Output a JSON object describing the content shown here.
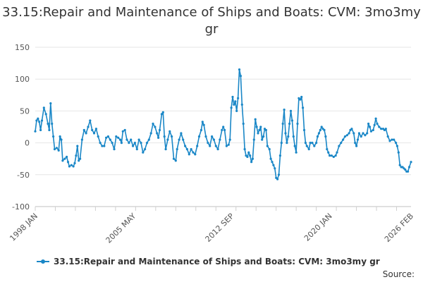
{
  "chart_data": {
    "type": "line",
    "title": "33.15:Repair and Maintenance of Ships and Boats: CVM: 3mo3my gr",
    "xlabel": "",
    "ylabel": "",
    "ylim": [
      -100,
      150
    ],
    "yticks": [
      150,
      100,
      50,
      0,
      -50,
      -100
    ],
    "xticks": [
      {
        "label": "1998 JAN",
        "t": 1998.0
      },
      {
        "label": "2005 MAY",
        "t": 2005.33
      },
      {
        "label": "2012 SEP",
        "t": 2012.67
      },
      {
        "label": "2020 JAN",
        "t": 2020.0
      },
      {
        "label": "2026 FEB",
        "t": 2026.08
      }
    ],
    "xlim": [
      1998.0,
      2026.08
    ],
    "grid": "horizontal",
    "legend_position": "bottom",
    "color": "#1a87c7",
    "series": [
      {
        "name": "33.15:Repair and Maintenance of Ships and Boats: CVM: 3mo3my gr",
        "points": [
          [
            1998.0,
            18
          ],
          [
            1998.1,
            35
          ],
          [
            1998.2,
            38
          ],
          [
            1998.3,
            33
          ],
          [
            1998.4,
            20
          ],
          [
            1998.5,
            35
          ],
          [
            1998.65,
            55
          ],
          [
            1998.8,
            45
          ],
          [
            1998.95,
            30
          ],
          [
            1999.05,
            20
          ],
          [
            1999.15,
            62
          ],
          [
            1999.25,
            30
          ],
          [
            1999.35,
            10
          ],
          [
            1999.45,
            -10
          ],
          [
            1999.6,
            -8
          ],
          [
            1999.75,
            -12
          ],
          [
            1999.85,
            10
          ],
          [
            1999.95,
            5
          ],
          [
            2000.05,
            -28
          ],
          [
            2000.2,
            -25
          ],
          [
            2000.35,
            -22
          ],
          [
            2000.45,
            -30
          ],
          [
            2000.55,
            -37
          ],
          [
            2000.7,
            -35
          ],
          [
            2000.85,
            -37
          ],
          [
            2000.95,
            -32
          ],
          [
            2001.05,
            -20
          ],
          [
            2001.15,
            -5
          ],
          [
            2001.25,
            -28
          ],
          [
            2001.35,
            -25
          ],
          [
            2001.5,
            5
          ],
          [
            2001.65,
            20
          ],
          [
            2001.8,
            15
          ],
          [
            2001.95,
            25
          ],
          [
            2002.1,
            35
          ],
          [
            2002.25,
            20
          ],
          [
            2002.4,
            15
          ],
          [
            2002.55,
            22
          ],
          [
            2002.7,
            10
          ],
          [
            2002.85,
            0
          ],
          [
            2003.0,
            -5
          ],
          [
            2003.15,
            -5
          ],
          [
            2003.3,
            8
          ],
          [
            2003.45,
            10
          ],
          [
            2003.6,
            5
          ],
          [
            2003.75,
            0
          ],
          [
            2003.9,
            -10
          ],
          [
            2004.05,
            10
          ],
          [
            2004.2,
            8
          ],
          [
            2004.35,
            5
          ],
          [
            2004.45,
            0
          ],
          [
            2004.55,
            18
          ],
          [
            2004.7,
            20
          ],
          [
            2004.85,
            5
          ],
          [
            2005.0,
            0
          ],
          [
            2005.15,
            5
          ],
          [
            2005.3,
            -5
          ],
          [
            2005.45,
            0
          ],
          [
            2005.6,
            -10
          ],
          [
            2005.75,
            5
          ],
          [
            2005.9,
            0
          ],
          [
            2006.05,
            -15
          ],
          [
            2006.2,
            -10
          ],
          [
            2006.35,
            0
          ],
          [
            2006.5,
            5
          ],
          [
            2006.65,
            15
          ],
          [
            2006.8,
            30
          ],
          [
            2006.95,
            25
          ],
          [
            2007.1,
            15
          ],
          [
            2007.2,
            8
          ],
          [
            2007.3,
            20
          ],
          [
            2007.45,
            45
          ],
          [
            2007.55,
            48
          ],
          [
            2007.65,
            10
          ],
          [
            2007.75,
            -10
          ],
          [
            2007.9,
            5
          ],
          [
            2008.05,
            18
          ],
          [
            2008.2,
            10
          ],
          [
            2008.35,
            -25
          ],
          [
            2008.5,
            -28
          ],
          [
            2008.6,
            -10
          ],
          [
            2008.75,
            5
          ],
          [
            2008.9,
            15
          ],
          [
            2009.05,
            5
          ],
          [
            2009.2,
            -5
          ],
          [
            2009.35,
            -10
          ],
          [
            2009.5,
            -18
          ],
          [
            2009.65,
            -10
          ],
          [
            2009.8,
            -15
          ],
          [
            2009.95,
            -18
          ],
          [
            2010.1,
            -5
          ],
          [
            2010.25,
            10
          ],
          [
            2010.4,
            20
          ],
          [
            2010.5,
            33
          ],
          [
            2010.6,
            28
          ],
          [
            2010.75,
            10
          ],
          [
            2010.9,
            0
          ],
          [
            2011.05,
            -5
          ],
          [
            2011.2,
            10
          ],
          [
            2011.35,
            5
          ],
          [
            2011.5,
            -5
          ],
          [
            2011.65,
            -10
          ],
          [
            2011.8,
            5
          ],
          [
            2011.95,
            20
          ],
          [
            2012.05,
            25
          ],
          [
            2012.15,
            20
          ],
          [
            2012.3,
            -5
          ],
          [
            2012.45,
            -3
          ],
          [
            2012.55,
            5
          ],
          [
            2012.65,
            55
          ],
          [
            2012.75,
            72
          ],
          [
            2012.85,
            60
          ],
          [
            2012.95,
            65
          ],
          [
            2013.05,
            50
          ],
          [
            2013.15,
            70
          ],
          [
            2013.25,
            115
          ],
          [
            2013.35,
            105
          ],
          [
            2013.45,
            60
          ],
          [
            2013.55,
            30
          ],
          [
            2013.65,
            -10
          ],
          [
            2013.75,
            -20
          ],
          [
            2013.85,
            -22
          ],
          [
            2013.95,
            -15
          ],
          [
            2014.05,
            -20
          ],
          [
            2014.15,
            -30
          ],
          [
            2014.25,
            -25
          ],
          [
            2014.35,
            5
          ],
          [
            2014.45,
            37
          ],
          [
            2014.55,
            25
          ],
          [
            2014.65,
            15
          ],
          [
            2014.75,
            20
          ],
          [
            2014.85,
            25
          ],
          [
            2014.95,
            5
          ],
          [
            2015.05,
            10
          ],
          [
            2015.15,
            22
          ],
          [
            2015.25,
            20
          ],
          [
            2015.35,
            -5
          ],
          [
            2015.5,
            -10
          ],
          [
            2015.6,
            -25
          ],
          [
            2015.7,
            -30
          ],
          [
            2015.8,
            -35
          ],
          [
            2015.9,
            -40
          ],
          [
            2016.0,
            -55
          ],
          [
            2016.1,
            -57
          ],
          [
            2016.2,
            -50
          ],
          [
            2016.3,
            -20
          ],
          [
            2016.4,
            0
          ],
          [
            2016.5,
            30
          ],
          [
            2016.6,
            52
          ],
          [
            2016.7,
            15
          ],
          [
            2016.8,
            0
          ],
          [
            2016.9,
            10
          ],
          [
            2017.0,
            30
          ],
          [
            2017.1,
            50
          ],
          [
            2017.2,
            35
          ],
          [
            2017.3,
            10
          ],
          [
            2017.4,
            -5
          ],
          [
            2017.5,
            -15
          ],
          [
            2017.6,
            30
          ],
          [
            2017.7,
            70
          ],
          [
            2017.8,
            68
          ],
          [
            2017.9,
            72
          ],
          [
            2018.0,
            55
          ],
          [
            2018.1,
            20
          ],
          [
            2018.2,
            0
          ],
          [
            2018.3,
            -5
          ],
          [
            2018.45,
            -10
          ],
          [
            2018.55,
            0
          ],
          [
            2018.7,
            0
          ],
          [
            2018.85,
            -5
          ],
          [
            2019.0,
            0
          ],
          [
            2019.1,
            10
          ],
          [
            2019.2,
            15
          ],
          [
            2019.3,
            20
          ],
          [
            2019.4,
            25
          ],
          [
            2019.5,
            22
          ],
          [
            2019.6,
            20
          ],
          [
            2019.7,
            10
          ],
          [
            2019.8,
            -10
          ],
          [
            2019.9,
            -15
          ],
          [
            2020.0,
            -20
          ],
          [
            2020.15,
            -20
          ],
          [
            2020.3,
            -22
          ],
          [
            2020.45,
            -20
          ],
          [
            2020.55,
            -15
          ],
          [
            2020.7,
            -5
          ],
          [
            2020.85,
            0
          ],
          [
            2021.0,
            5
          ],
          [
            2021.15,
            10
          ],
          [
            2021.3,
            12
          ],
          [
            2021.45,
            15
          ],
          [
            2021.55,
            20
          ],
          [
            2021.65,
            22
          ],
          [
            2021.8,
            15
          ],
          [
            2021.9,
            0
          ],
          [
            2022.0,
            -5
          ],
          [
            2022.1,
            5
          ],
          [
            2022.2,
            15
          ],
          [
            2022.35,
            10
          ],
          [
            2022.5,
            15
          ],
          [
            2022.65,
            12
          ],
          [
            2022.8,
            15
          ],
          [
            2022.9,
            30
          ],
          [
            2023.0,
            25
          ],
          [
            2023.1,
            18
          ],
          [
            2023.25,
            20
          ],
          [
            2023.35,
            28
          ],
          [
            2023.45,
            38
          ],
          [
            2023.55,
            30
          ],
          [
            2023.7,
            25
          ],
          [
            2023.85,
            22
          ],
          [
            2024.0,
            22
          ],
          [
            2024.1,
            20
          ],
          [
            2024.2,
            22
          ],
          [
            2024.35,
            10
          ],
          [
            2024.5,
            3
          ],
          [
            2024.65,
            5
          ],
          [
            2024.8,
            5
          ],
          [
            2024.95,
            0
          ],
          [
            2025.05,
            -5
          ],
          [
            2025.15,
            -15
          ],
          [
            2025.25,
            -35
          ],
          [
            2025.35,
            -38
          ],
          [
            2025.45,
            -38
          ],
          [
            2025.55,
            -40
          ],
          [
            2025.65,
            -42
          ],
          [
            2025.75,
            -45
          ],
          [
            2025.85,
            -45
          ],
          [
            2025.95,
            -38
          ],
          [
            2026.08,
            -30
          ]
        ]
      }
    ],
    "source_label": "Source:"
  }
}
